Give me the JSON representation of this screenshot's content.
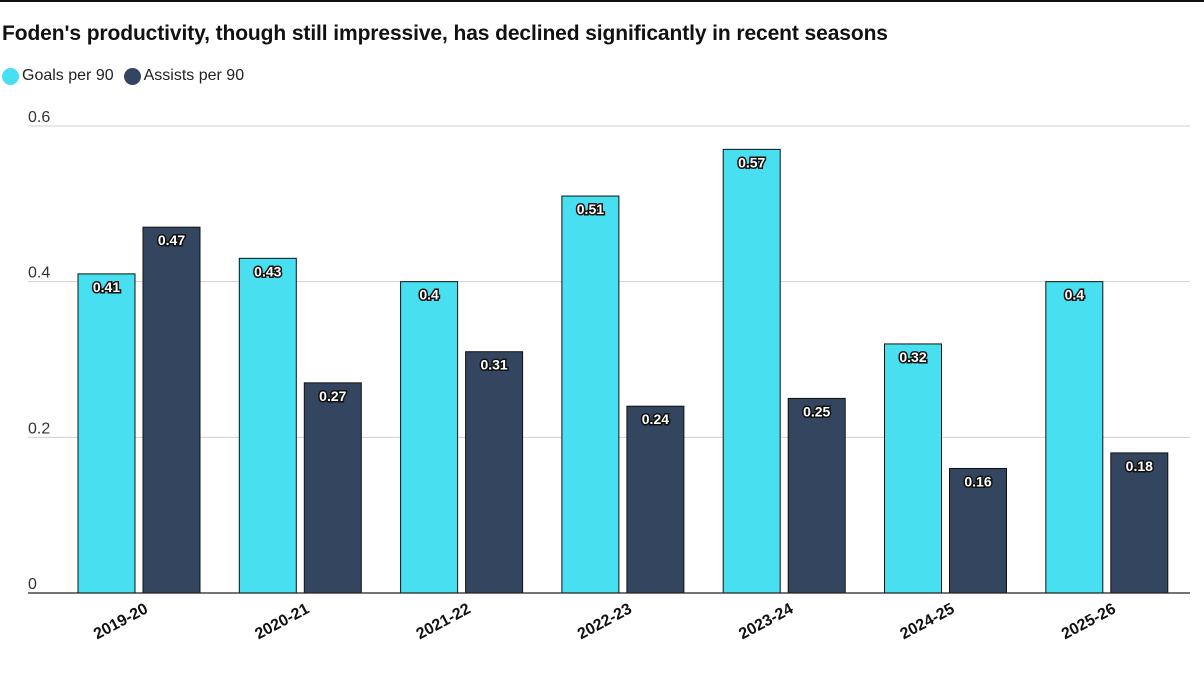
{
  "chart_data": {
    "type": "bar",
    "title": "Foden's productivity, though still impressive, has declined significantly in recent seasons",
    "categories": [
      "2019-20",
      "2020-21",
      "2021-22",
      "2022-23",
      "2023-24",
      "2024-25",
      "2025-26"
    ],
    "series": [
      {
        "name": "Goals per 90",
        "color": "#48E0F0",
        "values": [
          0.41,
          0.43,
          0.4,
          0.51,
          0.57,
          0.32,
          0.4
        ]
      },
      {
        "name": "Assists per 90",
        "color": "#34465F",
        "values": [
          0.47,
          0.27,
          0.31,
          0.24,
          0.25,
          0.16,
          0.18
        ]
      }
    ],
    "ylim": [
      0,
      0.6
    ],
    "yticks": [
      "0",
      "0.2",
      "0.4",
      "0.6"
    ],
    "ytick_values": [
      0,
      0.2,
      0.4,
      0.6
    ],
    "xlabel": "",
    "ylabel": "",
    "grid": true,
    "legend": "top-left",
    "data_labels": true
  }
}
